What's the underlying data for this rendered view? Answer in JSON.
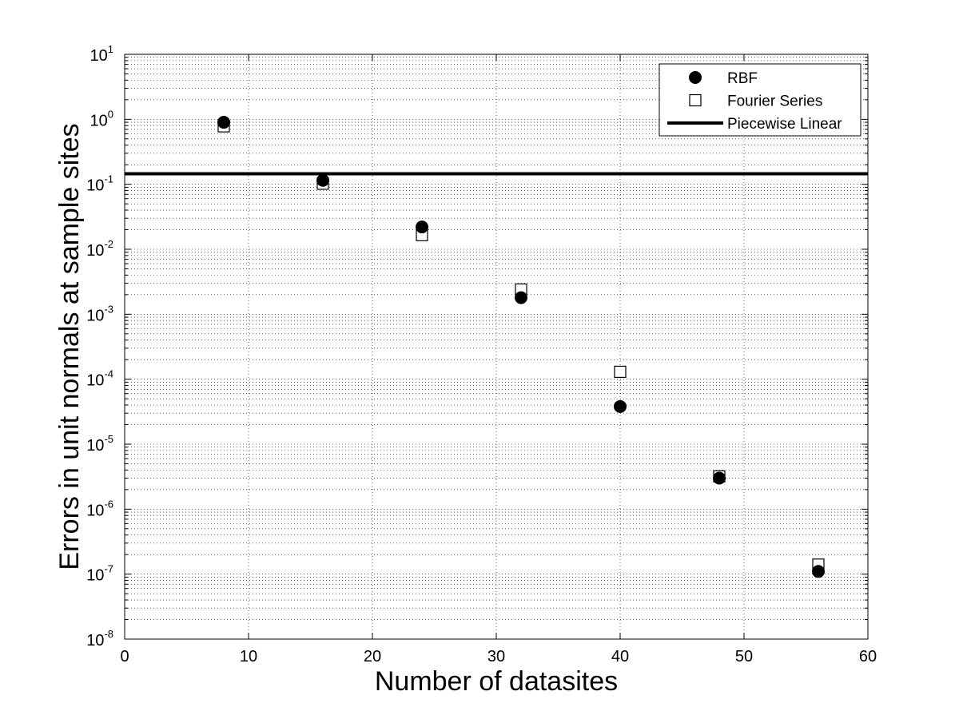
{
  "chart_data": {
    "type": "scatter",
    "title": "",
    "xlabel": "Number of datasites",
    "ylabel": "Errors in unit normals at sample sites",
    "xlim": [
      0,
      60
    ],
    "ylim": [
      1e-08,
      10
    ],
    "yscale": "log",
    "xticks": [
      0,
      10,
      20,
      30,
      40,
      50,
      60
    ],
    "yticks": [
      {
        "base": "10",
        "exp": "-8",
        "value": 1e-08
      },
      {
        "base": "10",
        "exp": "-7",
        "value": 1e-07
      },
      {
        "base": "10",
        "exp": "-6",
        "value": 1e-06
      },
      {
        "base": "10",
        "exp": "-5",
        "value": 1e-05
      },
      {
        "base": "10",
        "exp": "-4",
        "value": 0.0001
      },
      {
        "base": "10",
        "exp": "-3",
        "value": 0.001
      },
      {
        "base": "10",
        "exp": "-2",
        "value": 0.01
      },
      {
        "base": "10",
        "exp": "-1",
        "value": 0.1
      },
      {
        "base": "10",
        "exp": "0",
        "value": 1
      },
      {
        "base": "10",
        "exp": "1",
        "value": 10
      }
    ],
    "grid": true,
    "legend_position": "top-right",
    "series": [
      {
        "name": "RBF",
        "marker": "filled-circle",
        "color": "#000000",
        "x": [
          8,
          16,
          24,
          32,
          40,
          48,
          56
        ],
        "y": [
          0.9,
          0.115,
          0.022,
          0.0018,
          3.8e-05,
          3e-06,
          1.1e-07
        ]
      },
      {
        "name": "Fourier Series",
        "marker": "open-square",
        "color": "#000000",
        "x": [
          8,
          16,
          24,
          32,
          40,
          48,
          56
        ],
        "y": [
          0.78,
          0.102,
          0.0165,
          0.0024,
          0.00013,
          3.2e-06,
          1.4e-07
        ]
      },
      {
        "name": "Piecewise Linear",
        "marker": "line",
        "color": "#000000",
        "x": [
          0,
          60
        ],
        "y": [
          0.145,
          0.145
        ]
      }
    ]
  }
}
